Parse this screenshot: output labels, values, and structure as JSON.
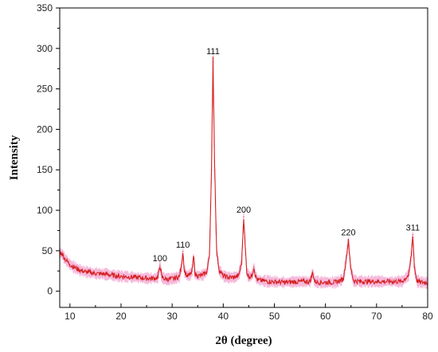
{
  "chart_data": {
    "type": "line",
    "xlabel": "2θ (degree)",
    "ylabel": "Intensity",
    "xlim": [
      8,
      80
    ],
    "ylim": [
      -20,
      350
    ],
    "xticks": [
      10,
      20,
      30,
      40,
      50,
      60,
      70,
      80
    ],
    "yticks": [
      0,
      50,
      100,
      150,
      200,
      250,
      300,
      350
    ],
    "grid": false,
    "series": [
      {
        "color": "#d62020",
        "band_color": "#f6b8da",
        "x": [
          8,
          8.5,
          9,
          10,
          11,
          12,
          13,
          14,
          15,
          17,
          19,
          21,
          23,
          25,
          26.5,
          27.2,
          27.6,
          28.0,
          28.6,
          29.5,
          30.5,
          31.4,
          31.8,
          32.1,
          32.4,
          32.9,
          33.5,
          33.9,
          34.2,
          34.5,
          35.0,
          36.0,
          36.8,
          37.3,
          37.7,
          38.0,
          38.3,
          38.7,
          39.2,
          40.0,
          41.0,
          42.0,
          43.0,
          43.6,
          44.0,
          44.3,
          44.6,
          45.0,
          45.6,
          46.0,
          46.3,
          46.7,
          47.5,
          49.0,
          52.0,
          55.0,
          57.0,
          57.5,
          57.9,
          59.0,
          62.0,
          63.5,
          64.1,
          64.5,
          64.9,
          65.5,
          67.0,
          70.0,
          73.0,
          75.0,
          76.3,
          76.8,
          77.1,
          77.4,
          77.9,
          78.5,
          79.3,
          80.0
        ],
        "y": [
          48,
          46,
          40,
          33,
          29,
          26,
          24,
          23,
          22,
          21,
          19,
          18,
          17,
          16,
          16,
          17,
          32,
          17,
          15,
          15,
          16,
          18,
          30,
          49,
          25,
          19,
          20,
          25,
          43,
          21,
          19,
          20,
          24,
          45,
          150,
          288,
          160,
          50,
          26,
          19,
          17,
          17,
          19,
          35,
          92,
          55,
          24,
          18,
          19,
          30,
          19,
          14,
          13,
          12,
          11,
          12,
          12,
          23,
          12,
          11,
          11,
          15,
          42,
          64,
          30,
          13,
          12,
          12,
          12,
          12,
          20,
          45,
          70,
          30,
          13,
          11,
          11,
          10
        ]
      }
    ],
    "annotations": [
      {
        "text": "100",
        "x": 27.6,
        "y": 32
      },
      {
        "text": "110",
        "x": 32.1,
        "y": 49
      },
      {
        "text": "111",
        "x": 38.0,
        "y": 288
      },
      {
        "text": "200",
        "x": 44.0,
        "y": 92
      },
      {
        "text": "220",
        "x": 64.5,
        "y": 64
      },
      {
        "text": "311",
        "x": 77.1,
        "y": 70
      }
    ]
  }
}
